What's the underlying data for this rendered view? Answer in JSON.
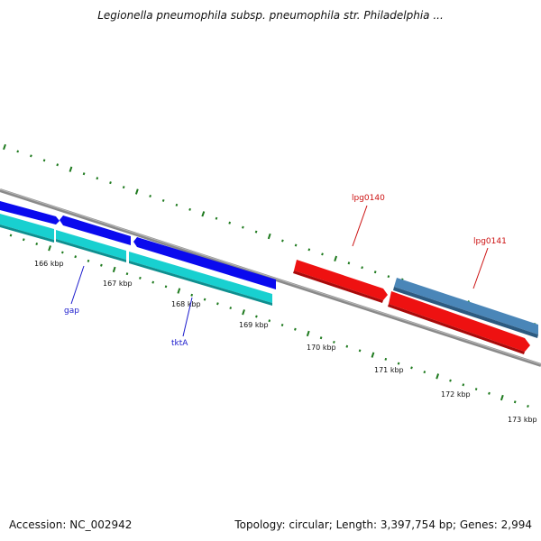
{
  "title": "Legionella pneumophila subsp. pneumophila str. Philadelphia ...",
  "footer": {
    "accession": "Accession: NC_002942",
    "summary": "Topology: circular; Length: 3,397,754 bp; Genes: 2,994"
  },
  "colors": {
    "backbone": "#8a8a8a",
    "tick": "#1e7a1e",
    "forward_gene": "#0a0aee",
    "reverse_gene": "#18d0d0",
    "red_gene": "#ee1111",
    "steel_gene": "#4a86b8",
    "blue_label": "#1a1acc",
    "red_label": "#cc1111"
  },
  "scale_labels": [
    "166 kbp",
    "167 kbp",
    "168 kbp",
    "169 kbp",
    "170 kbp",
    "171 kbp",
    "172 kbp",
    "173 kbp"
  ],
  "gene_labels": {
    "gap": "gap",
    "tktA": "tktA",
    "lpg0140": "lpg0140",
    "lpg0141": "lpg0141"
  }
}
